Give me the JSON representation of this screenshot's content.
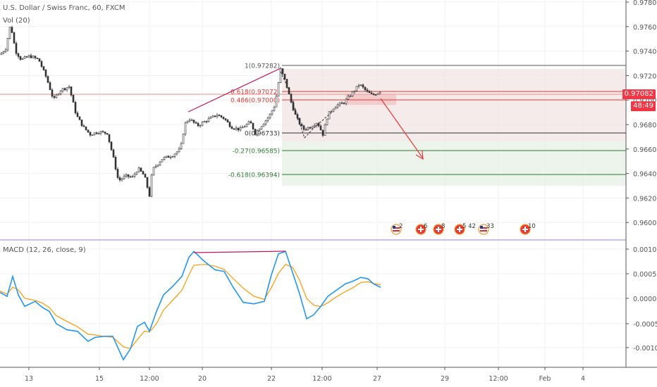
{
  "chart": {
    "title": "U.S. Dollar / Swiss Franc, 60, FXCM",
    "volume_label": "Vol (20)",
    "macd_label": "MACD (12, 26, close, 9)",
    "last_price_tag": "0.97082",
    "countdown_tag": "48:49",
    "last_price_tag_color": "#f23645",
    "countdown_tag_color": "#f23645",
    "price_scale_ticks": [
      "0.97800",
      "0.97600",
      "0.97400",
      "0.97200",
      "0.97000",
      "0.96800",
      "0.96600",
      "0.96400",
      "0.96200",
      "0.96000"
    ],
    "macd_scale_ticks": [
      "0.00100",
      "0.00050",
      "0.00000",
      "-0.00050",
      "-0.00100"
    ],
    "time_labels": [
      "13",
      "15",
      "12:00",
      "20",
      "22",
      "12:00",
      "27",
      "29",
      "12:00",
      "Feb",
      "4"
    ],
    "fib": {
      "levels": [
        {
          "label": "1(0.97282)",
          "price": 0.97282,
          "color": "#555555"
        },
        {
          "label": "0.618(0.97072)",
          "price": 0.97072,
          "color": "#e53935"
        },
        {
          "label": "0.486(0.97000)",
          "price": 0.97,
          "color": "#e53935"
        },
        {
          "label": "0(0.96733)",
          "price": 0.96733,
          "color": "#333333"
        },
        {
          "label": "-0.27(0.96585)",
          "price": 0.96585,
          "color": "#2e7d32"
        },
        {
          "label": "-0.618(0.96394)",
          "price": 0.96394,
          "color": "#2e7d32"
        }
      ]
    },
    "events": [
      {
        "icon": "us-flag-icon",
        "text": "2"
      },
      {
        "icon": "ch-flag-icon",
        "text": "6"
      },
      {
        "icon": "ch-flag-icon",
        "text": "8"
      },
      {
        "icon": "ch-flag-icon",
        "text": "5 42"
      },
      {
        "icon": "us-flag-icon",
        "text": "33"
      },
      {
        "icon": "ch-flag-icon",
        "text": "10"
      }
    ],
    "colors": {
      "candle": "#333333",
      "macd_line": "#2196f3",
      "signal_line": "#ff9800",
      "divergence": "#c2185b",
      "arrow": "#e53935",
      "separator": "#9c7fd3"
    }
  }
}
